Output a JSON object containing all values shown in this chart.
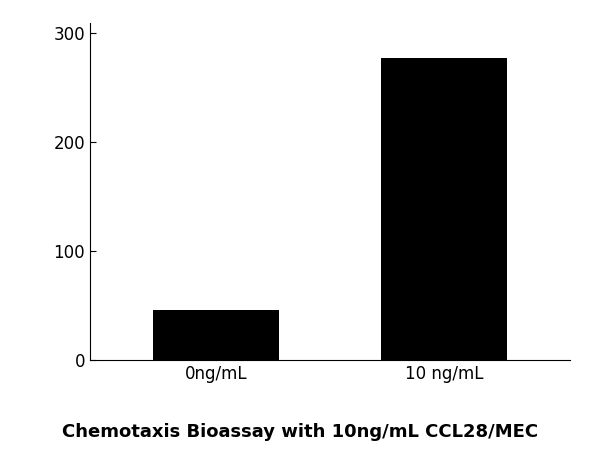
{
  "categories": [
    "0ng/mL",
    "10 ng/mL"
  ],
  "values": [
    46,
    277
  ],
  "bar_color": "#000000",
  "bar_width": 0.55,
  "ylim": [
    0,
    310
  ],
  "yticks": [
    0,
    100,
    200,
    300
  ],
  "title": "Chemotaxis Bioassay with 10ng/mL CCL28/MEC",
  "title_fontsize": 13,
  "title_fontweight": "bold",
  "tick_labelsize": 12,
  "background_color": "#ffffff",
  "spine_color": "#000000"
}
